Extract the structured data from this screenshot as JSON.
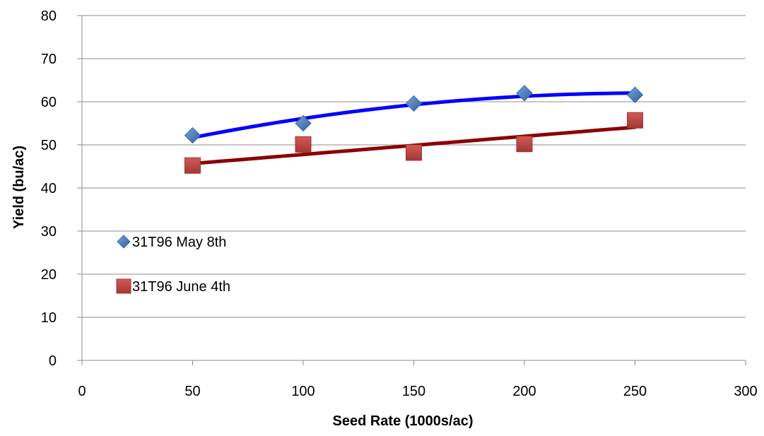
{
  "chart_data": {
    "type": "scatter",
    "title": "",
    "xlabel": "Seed Rate (1000s/ac)",
    "ylabel": "Yield (bu/ac)",
    "xlim": [
      0,
      300
    ],
    "ylim": [
      0,
      80
    ],
    "xticks": [
      0,
      50,
      100,
      150,
      200,
      250,
      300
    ],
    "yticks": [
      0,
      10,
      20,
      30,
      40,
      50,
      60,
      70,
      80
    ],
    "grid": "horizontal",
    "legend_position": "left",
    "series": [
      {
        "name": "31T96 May 8th",
        "marker": "diamond",
        "marker_color": "#4a7ebb",
        "trend_color": "#0000ff",
        "trend_type": "polynomial",
        "x": [
          50,
          100,
          150,
          200,
          250
        ],
        "y": [
          52.2,
          55.0,
          59.6,
          62.0,
          61.6
        ]
      },
      {
        "name": "31T96 June 4th",
        "marker": "square",
        "marker_color": "#be4b48",
        "trend_color": "#8b0000",
        "trend_type": "linear",
        "x": [
          50,
          100,
          150,
          200,
          250
        ],
        "y": [
          45.2,
          50.1,
          48.2,
          50.2,
          55.7
        ]
      }
    ]
  }
}
